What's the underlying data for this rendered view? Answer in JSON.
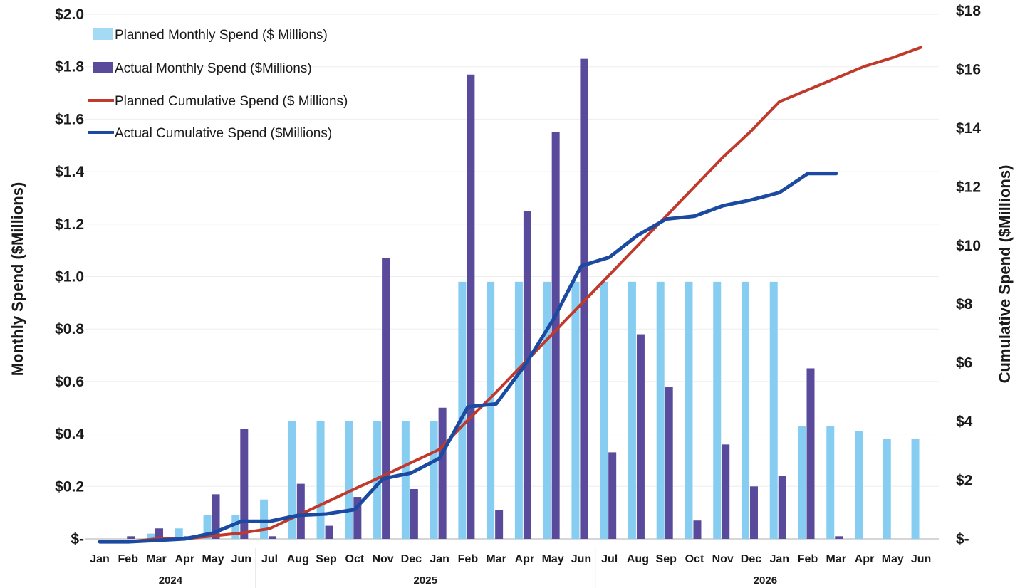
{
  "chart_data": {
    "type": "bar",
    "categories": [
      "Jan",
      "Feb",
      "Mar",
      "Apr",
      "May",
      "Jun",
      "Jul",
      "Aug",
      "Sep",
      "Oct",
      "Nov",
      "Dec",
      "Jan",
      "Feb",
      "Mar",
      "Apr",
      "May",
      "Jun",
      "Jul",
      "Aug",
      "Sep",
      "Oct",
      "Nov",
      "Dec",
      "Jan",
      "Feb",
      "Mar",
      "Apr",
      "May",
      "Jun"
    ],
    "year_groups": [
      {
        "label": "2024",
        "start": 0,
        "end": 5
      },
      {
        "label": "2025",
        "start": 6,
        "end": 17
      },
      {
        "label": "2026",
        "start": 18,
        "end": 29
      }
    ],
    "series": [
      {
        "name": "Planned Monthly Spend ($ Millions)",
        "type": "bar",
        "axis": "left",
        "color": "#87cdf2",
        "values": [
          0,
          0,
          0.02,
          0.04,
          0.09,
          0.09,
          0.15,
          0.45,
          0.45,
          0.45,
          0.45,
          0.45,
          0.45,
          0.98,
          0.98,
          0.98,
          0.98,
          0.98,
          0.98,
          0.98,
          0.98,
          0.98,
          0.98,
          0.98,
          0.98,
          0.43,
          0.43,
          0.41,
          0.38,
          0.38
        ]
      },
      {
        "name": "Actual Monthly Spend ($Millions)",
        "type": "bar",
        "axis": "left",
        "color": "#5a4a9c",
        "values": [
          0,
          0.01,
          0.04,
          0.01,
          0.17,
          0.42,
          0.01,
          0.21,
          0.05,
          0.16,
          1.07,
          0.19,
          0.5,
          1.77,
          0.11,
          1.25,
          1.55,
          1.83,
          0.33,
          0.78,
          0.58,
          0.07,
          0.36,
          0.2,
          0.24,
          0.65,
          0.01,
          null,
          null,
          null
        ]
      },
      {
        "name": "Planned Cumulative Spend ($ Millions)",
        "type": "line",
        "axis": "right",
        "color": "#c0392b",
        "values": [
          -0.1,
          -0.1,
          0,
          0,
          0.1,
          0.2,
          0.35,
          0.8,
          1.25,
          1.7,
          2.15,
          2.6,
          3.05,
          4.05,
          5.0,
          6.0,
          7.0,
          8.0,
          9.0,
          10.0,
          11.0,
          12.0,
          13.0,
          13.9,
          14.9,
          15.3,
          15.7,
          16.1,
          16.4,
          16.75
        ]
      },
      {
        "name": "Actual Cumulative Spend ($Millions)",
        "type": "line",
        "axis": "right",
        "color": "#1c4aa0",
        "values": [
          -0.1,
          -0.1,
          -0.05,
          0,
          0.2,
          0.6,
          0.6,
          0.8,
          0.85,
          1.0,
          2.05,
          2.25,
          2.75,
          4.5,
          4.6,
          5.9,
          7.45,
          9.3,
          9.6,
          10.35,
          10.9,
          11.0,
          11.35,
          11.55,
          11.8,
          12.45,
          12.45,
          null,
          null,
          null
        ]
      }
    ],
    "y_left": {
      "label": "Monthly Spend ($Millions)",
      "range": [
        0,
        2.0
      ],
      "ticks": [
        0,
        0.2,
        0.4,
        0.6,
        0.8,
        1.0,
        1.2,
        1.4,
        1.6,
        1.8,
        2.0
      ],
      "tick_labels": [
        "$-",
        "$0.2",
        "$0.4",
        "$0.6",
        "$0.8",
        "$1.0",
        "$1.2",
        "$1.4",
        "$1.6",
        "$1.8",
        "$2.0"
      ]
    },
    "y_right": {
      "label": "Cumulative Spend ($Millions)",
      "range": [
        0,
        18
      ],
      "ticks": [
        0,
        2,
        4,
        6,
        8,
        10,
        12,
        14,
        16,
        18
      ],
      "tick_labels": [
        "$-",
        "$2",
        "$4",
        "$6",
        "$8",
        "$10",
        "$12",
        "$14",
        "$16",
        "$18"
      ]
    },
    "grid": true,
    "legend": "top-left"
  }
}
